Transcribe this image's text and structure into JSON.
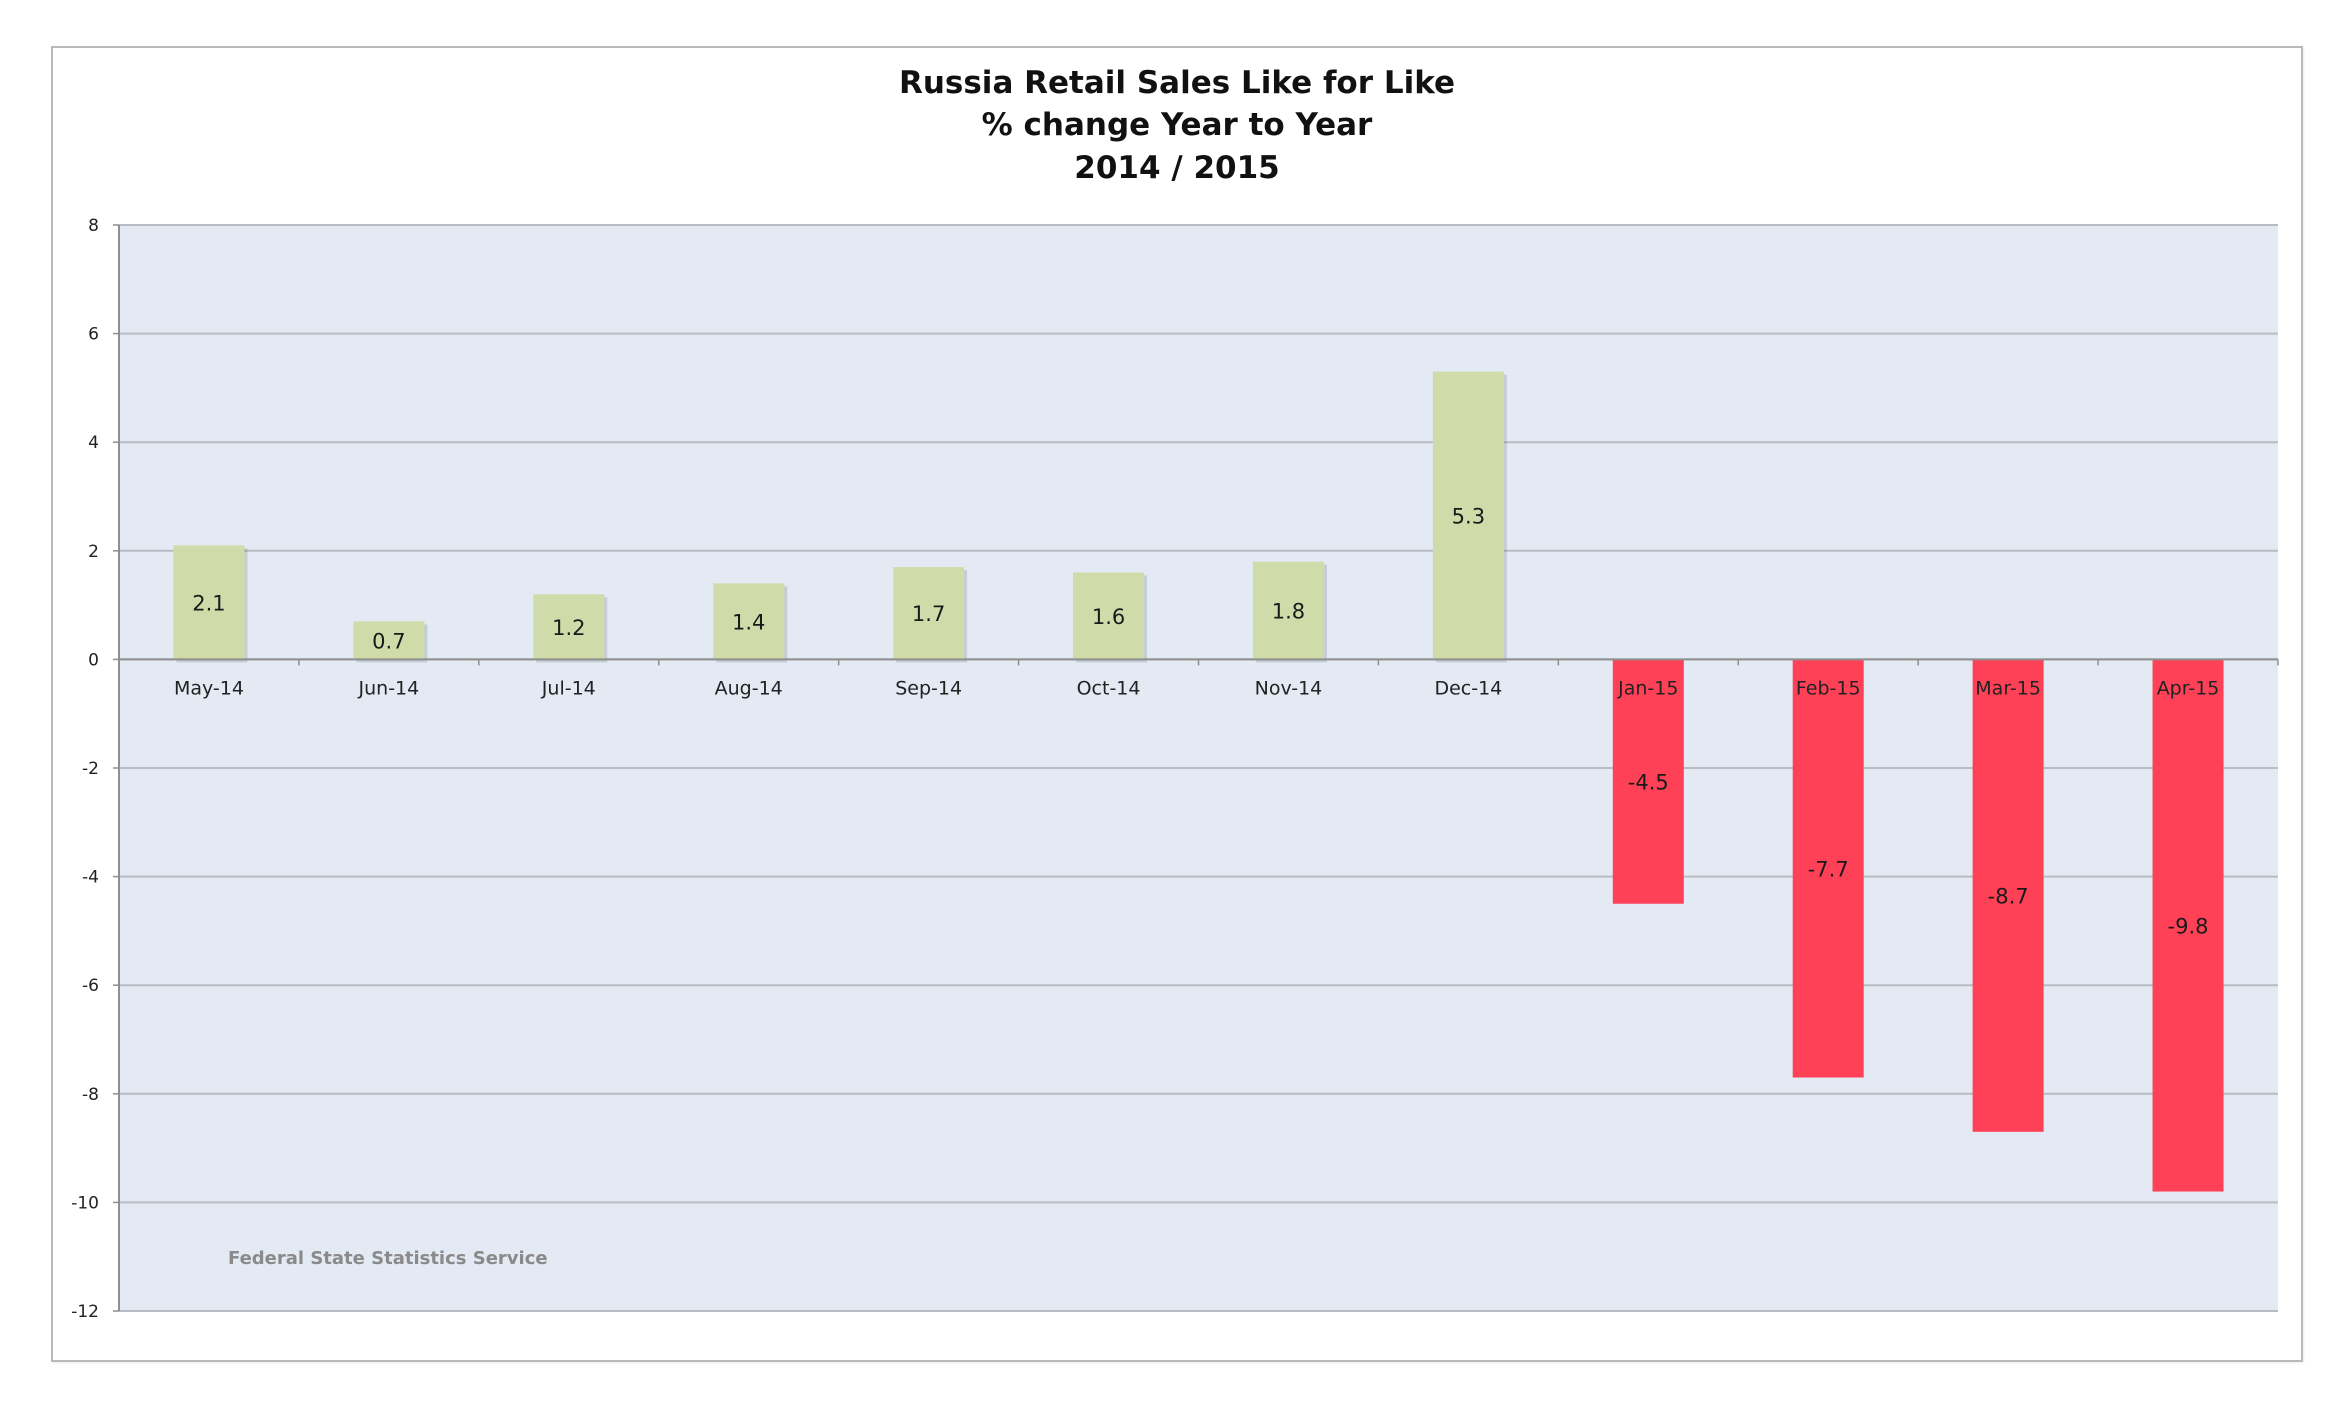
{
  "chart_data": {
    "type": "bar",
    "title": [
      "Russia Retail Sales Like for Like",
      "% change Year to Year",
      "2014 / 2015"
    ],
    "xlabel": "",
    "ylabel": "",
    "categories": [
      "May-14",
      "Jun-14",
      "Jul-14",
      "Aug-14",
      "Sep-14",
      "Oct-14",
      "Nov-14",
      "Dec-14",
      "Jan-15",
      "Feb-15",
      "Mar-15",
      "Apr-15"
    ],
    "values": [
      2.1,
      0.7,
      1.2,
      1.4,
      1.7,
      1.6,
      1.8,
      5.3,
      -4.5,
      -7.7,
      -8.7,
      -9.8
    ],
    "data_labels": [
      "2.1",
      "0.7",
      "1.2",
      "1.4",
      "1.7",
      "1.6",
      "1.8",
      "5.3",
      "-4.5",
      "-7.7",
      "-8.7",
      "-9.8"
    ],
    "ylim": [
      -12,
      8
    ],
    "yticks": [
      8,
      6,
      4,
      2,
      0,
      -2,
      -4,
      -6,
      -8,
      -10,
      -12
    ],
    "ytick_labels": [
      "8",
      "6",
      "4",
      "2",
      "0",
      "-2",
      "-4",
      "-6",
      "-8",
      "-10",
      "-12"
    ],
    "grid": true,
    "legend": "none",
    "source_note": "Federal State Statistics Service",
    "colors": {
      "positive": "#cfdcaa",
      "negative": "#ff4157",
      "plot_background": "#e3eaf3",
      "gridline": "#b8bdc4"
    }
  }
}
